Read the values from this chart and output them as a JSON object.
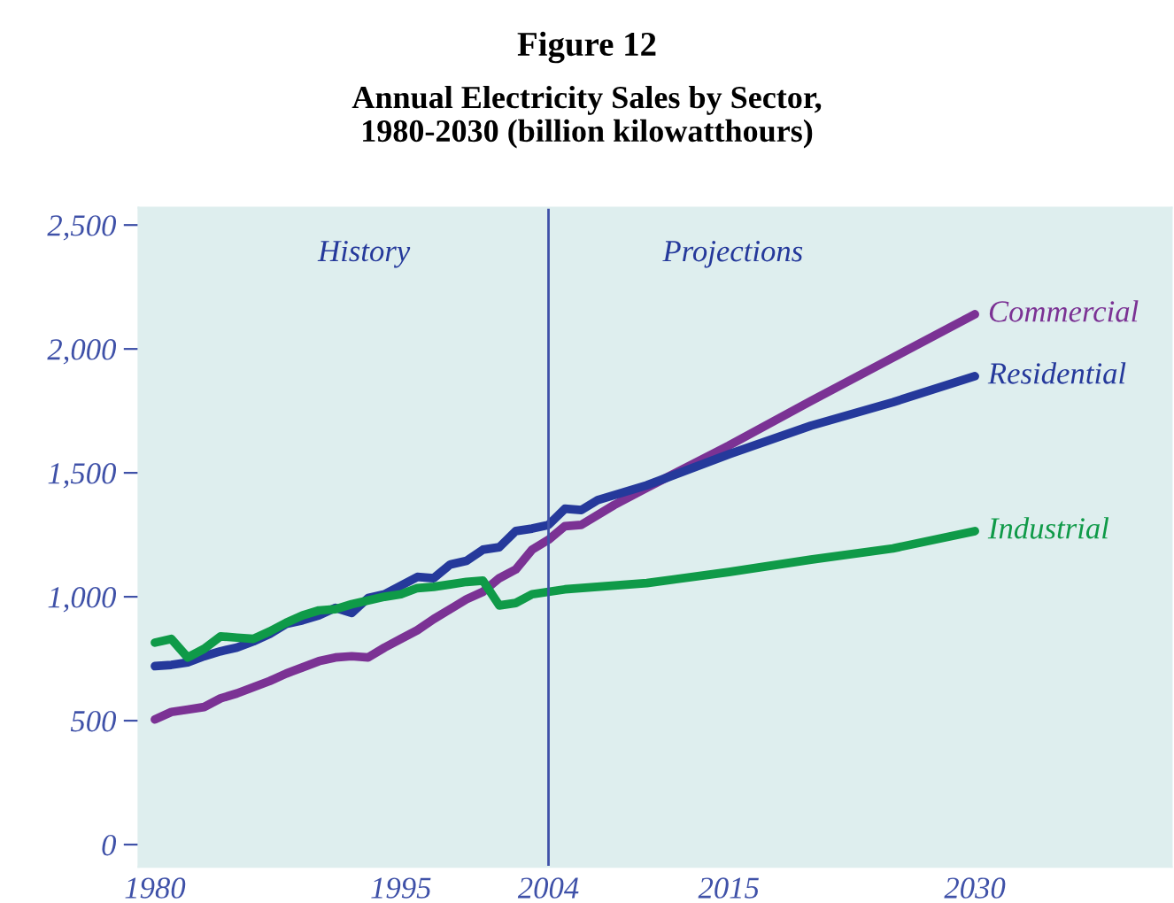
{
  "chart_data": {
    "type": "line",
    "title": "Figure 12",
    "subtitle": "Annual Electricity Sales by Sector,\n1980-2030 (billion kilowatthours)",
    "xlim": [
      1979,
      2042
    ],
    "ylim": [
      -90,
      2570
    ],
    "xticks": [
      1980,
      1995,
      2004,
      2015,
      2030
    ],
    "yticks": [
      {
        "value": 0,
        "label": "0"
      },
      {
        "value": 500,
        "label": "500"
      },
      {
        "value": 1000,
        "label": "1,000"
      },
      {
        "value": 1500,
        "label": "1,500"
      },
      {
        "value": 2000,
        "label": "2,000"
      },
      {
        "value": 2500,
        "label": "2,500"
      }
    ],
    "grid": false,
    "legend": false,
    "marker": "none",
    "line_style": "solid",
    "ref_lines": [
      {
        "axis": "x",
        "value": 2004,
        "color": "#3f51a8",
        "line_style": "solid"
      }
    ],
    "annotations": [
      "History",
      "Projections"
    ],
    "series": [
      {
        "name": "Commercial",
        "color": "#7b3294",
        "x": [
          1980,
          1981,
          1982,
          1983,
          1984,
          1985,
          1986,
          1987,
          1988,
          1989,
          1990,
          1991,
          1992,
          1993,
          1994,
          1995,
          1996,
          1997,
          1998,
          1999,
          2000,
          2001,
          2002,
          2003,
          2004,
          2005,
          2006,
          2008,
          2010,
          2015,
          2020,
          2025,
          2030
        ],
        "values": [
          505,
          535,
          545,
          555,
          590,
          610,
          635,
          660,
          690,
          715,
          740,
          755,
          760,
          755,
          795,
          830,
          865,
          910,
          950,
          990,
          1020,
          1075,
          1110,
          1190,
          1230,
          1285,
          1290,
          1370,
          1440,
          1610,
          1790,
          1965,
          2140
        ]
      },
      {
        "name": "Residential",
        "color": "#25399b",
        "x": [
          1980,
          1981,
          1982,
          1983,
          1984,
          1985,
          1986,
          1987,
          1988,
          1989,
          1990,
          1991,
          1992,
          1993,
          1994,
          1995,
          1996,
          1997,
          1998,
          1999,
          2000,
          2001,
          2002,
          2003,
          2004,
          2005,
          2006,
          2007,
          2010,
          2015,
          2020,
          2025,
          2030
        ],
        "values": [
          720,
          725,
          735,
          760,
          780,
          795,
          820,
          850,
          890,
          905,
          925,
          955,
          935,
          995,
          1010,
          1045,
          1080,
          1075,
          1130,
          1145,
          1190,
          1200,
          1265,
          1275,
          1290,
          1355,
          1350,
          1390,
          1450,
          1575,
          1690,
          1785,
          1890
        ]
      },
      {
        "name": "Industrial",
        "color": "#0f9a48",
        "x": [
          1980,
          1981,
          1982,
          1983,
          1984,
          1985,
          1986,
          1987,
          1988,
          1989,
          1990,
          1991,
          1992,
          1993,
          1994,
          1995,
          1996,
          1997,
          1998,
          1999,
          2000,
          2001,
          2002,
          2003,
          2004,
          2005,
          2010,
          2015,
          2020,
          2025,
          2030
        ],
        "values": [
          815,
          830,
          755,
          790,
          840,
          835,
          830,
          860,
          895,
          925,
          945,
          950,
          970,
          985,
          1000,
          1010,
          1035,
          1040,
          1050,
          1060,
          1065,
          965,
          975,
          1010,
          1020,
          1030,
          1055,
          1100,
          1150,
          1195,
          1265
        ]
      }
    ]
  }
}
